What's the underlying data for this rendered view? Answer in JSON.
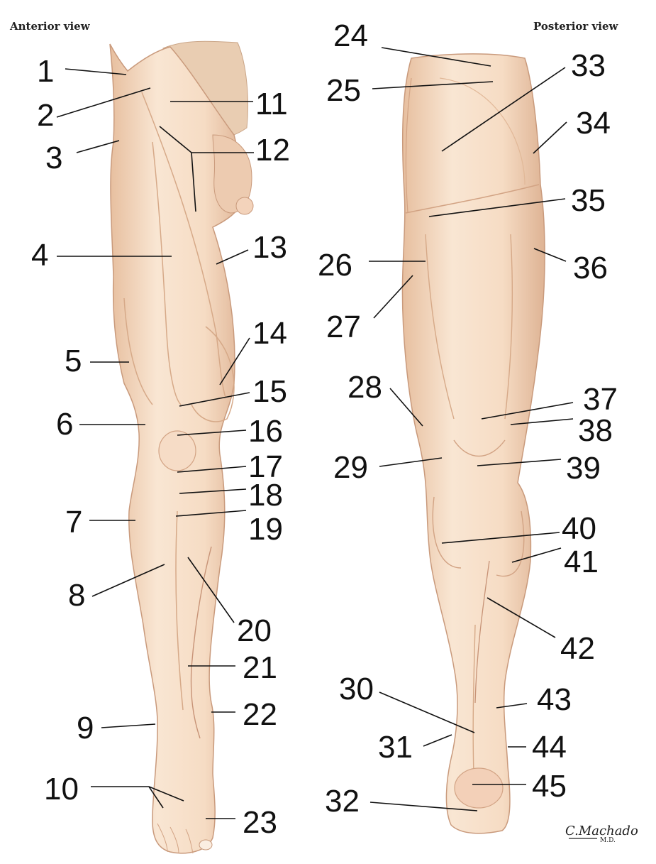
{
  "views": {
    "anterior": "Anterior view",
    "posterior": "Posterior view"
  },
  "labels": [
    "1",
    "2",
    "3",
    "4",
    "5",
    "6",
    "7",
    "8",
    "9",
    "10",
    "11",
    "12",
    "13",
    "14",
    "15",
    "16",
    "17",
    "18",
    "19",
    "20",
    "21",
    "22",
    "23",
    "24",
    "25",
    "26",
    "27",
    "28",
    "29",
    "30",
    "31",
    "32",
    "33",
    "34",
    "35",
    "36",
    "37",
    "38",
    "39",
    "40",
    "41",
    "42",
    "43",
    "44",
    "45"
  ],
  "signature": {
    "name": "C.Machado",
    "credential": "M.D."
  },
  "colors": {
    "skin_light": "#f8e3cf",
    "skin_mid": "#f0cfb3",
    "skin_shadow": "#ddb08f",
    "skin_outline": "#c99a7c",
    "leader_line": "#111111"
  }
}
